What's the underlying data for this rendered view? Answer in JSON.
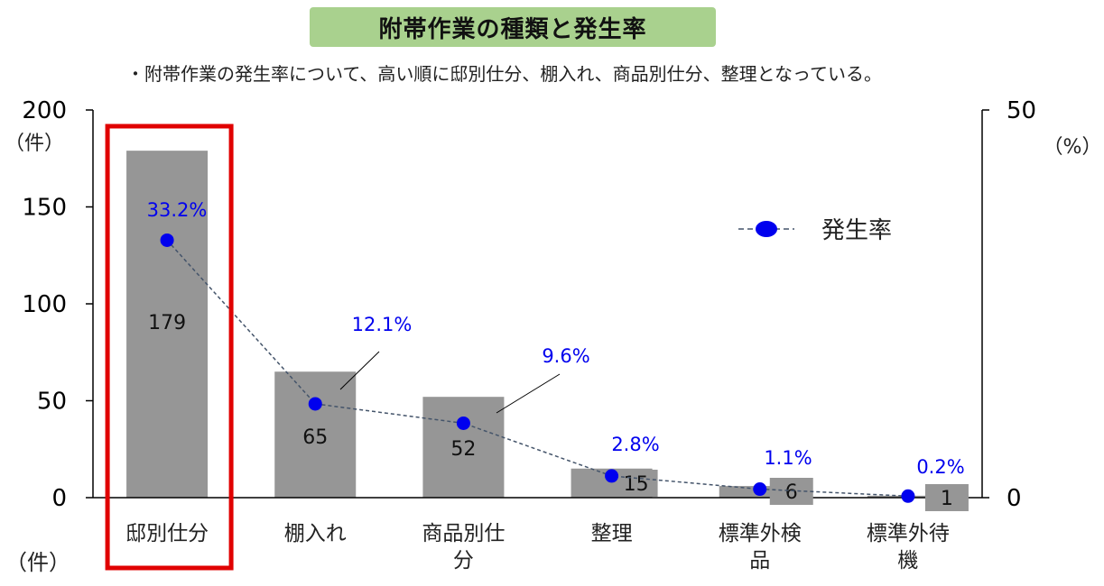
{
  "chart_data": {
    "type": "bar",
    "title": "附帯作業の種類と発生率",
    "subtitle": "・附帯作業の発生率について、高い順に邸別仕分、棚入れ、商品別仕分、整理となっている。",
    "categories": [
      "邸別仕分",
      "棚入れ",
      "商品別仕分",
      "整理",
      "標準外検品",
      "標準外待機"
    ],
    "category_lines": [
      [
        "邸別仕分"
      ],
      [
        "棚入れ"
      ],
      [
        "商品別仕",
        "分"
      ],
      [
        "整理"
      ],
      [
        "標準外検",
        "品"
      ],
      [
        "標準外待",
        "機"
      ]
    ],
    "series": [
      {
        "type": "bar",
        "axis": "left",
        "values": [
          179,
          65,
          52,
          15,
          6,
          1
        ],
        "value_labels": [
          "179",
          "65",
          "52",
          "15",
          "6",
          "1"
        ],
        "color": "#969696"
      },
      {
        "name": "発生率",
        "type": "line",
        "axis": "right",
        "values": [
          33.2,
          12.1,
          9.6,
          2.8,
          1.1,
          0.2
        ],
        "value_labels": [
          "33.2%",
          "12.1%",
          "9.6%",
          "2.8%",
          "1.1%",
          "0.2%"
        ],
        "color": "#0000ee",
        "line_color": "#44546a",
        "line_style": "dashed"
      }
    ],
    "y_left": {
      "min": 0,
      "max": 200,
      "ticks": [
        "0",
        "50",
        "100",
        "150",
        "200"
      ],
      "unit_top": "（件）",
      "unit_bottom": "（件）"
    },
    "y_right": {
      "min": 0,
      "max": 50,
      "ticks": [
        "0",
        "50"
      ],
      "unit": "（%）"
    },
    "legend": {
      "position": "top-right",
      "label": "発生率"
    },
    "highlight": {
      "category_index": 0,
      "color": "#e00000"
    },
    "grid": false
  }
}
